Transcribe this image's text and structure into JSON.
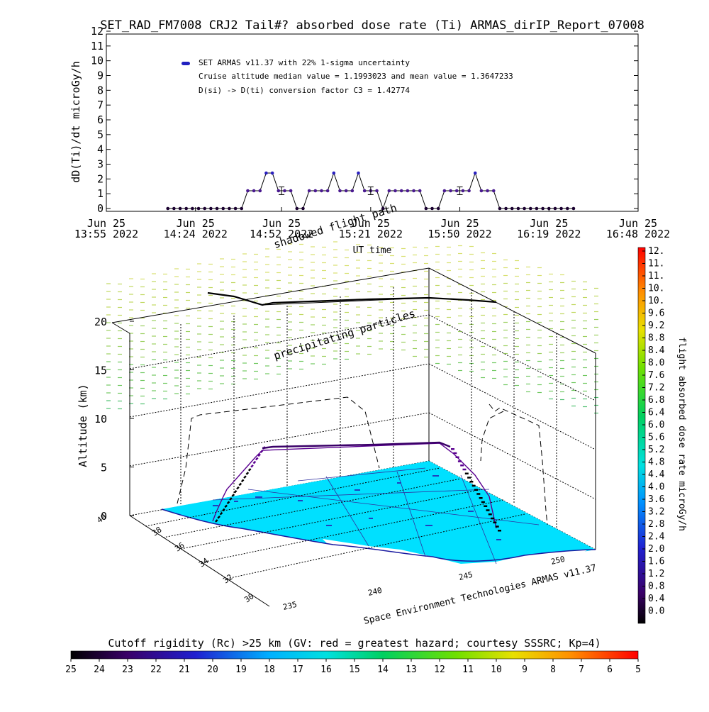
{
  "title": "SET_RAD_FM7008  CRJ2 Tail#? absorbed dose rate (Ti) ARMAS_dirIP_Report_07008",
  "chart_data": [
    {
      "type": "line",
      "ylabel": "dD(Ti)/dt microGy/h",
      "xlabel": "UT time",
      "ylim": [
        0,
        12
      ],
      "yticks": [
        0,
        1,
        2,
        3,
        4,
        5,
        6,
        7,
        8,
        9,
        10,
        11,
        12
      ],
      "xticks": [
        {
          "x": 0,
          "line1": "Jun 25",
          "line2": "13:55 2022"
        },
        {
          "x": 29,
          "line1": "Jun 25",
          "line2": "14:24 2022"
        },
        {
          "x": 57,
          "line1": "Jun 25",
          "line2": "14:52 2022"
        },
        {
          "x": 86,
          "line1": "Jun 25",
          "line2": "15:21 2022"
        },
        {
          "x": 115,
          "line1": "Jun 25",
          "line2": "15:50 2022"
        },
        {
          "x": 144,
          "line1": "Jun 25",
          "line2": "16:19 2022"
        },
        {
          "x": 173,
          "line1": "Jun 25",
          "line2": "16:48 2022"
        }
      ],
      "xlim": [
        0,
        173
      ],
      "legend": [
        "SET ARMAS v11.37 with 22% 1-sigma uncertainty",
        "Cruise altitude median value = 1.1993023 and mean value = 1.3647233",
        "D(si) -> D(ti) conversion factor C3 = 1.42774"
      ],
      "series": [
        {
          "x": [
            20,
            22,
            24,
            26,
            28,
            30,
            32,
            34,
            36,
            38,
            40,
            42,
            44,
            46,
            48,
            50,
            52,
            54,
            56,
            58,
            60,
            62,
            64,
            66,
            68,
            70,
            72,
            74,
            76,
            78,
            80,
            82,
            84,
            86,
            88,
            90,
            92,
            94,
            96,
            98,
            100,
            102,
            104,
            106,
            108,
            110,
            112,
            114,
            116,
            118,
            120,
            122,
            124,
            126,
            128,
            130,
            132,
            134,
            136,
            138,
            140,
            142,
            144,
            146,
            148,
            150,
            152
          ],
          "y": [
            0,
            0,
            0,
            0,
            0,
            0,
            0,
            0,
            0,
            0,
            0,
            0,
            0,
            1.2,
            1.2,
            1.2,
            2.4,
            2.4,
            1.2,
            1.2,
            1.2,
            0,
            0,
            1.2,
            1.2,
            1.2,
            1.2,
            2.4,
            1.2,
            1.2,
            1.2,
            2.4,
            1.2,
            1.2,
            1.2,
            0,
            1.2,
            1.2,
            1.2,
            1.2,
            1.2,
            1.2,
            0,
            0,
            0,
            1.2,
            1.2,
            1.2,
            1.2,
            1.2,
            2.4,
            1.2,
            1.2,
            1.2,
            0,
            0,
            0,
            0,
            0,
            0,
            0,
            0,
            0,
            0,
            0,
            0,
            0
          ]
        }
      ],
      "errorbars": [
        {
          "x": 57,
          "y": 1.2,
          "err": 0.26
        },
        {
          "x": 86,
          "y": 1.2,
          "err": 0.26
        },
        {
          "x": 115,
          "y": 1.2,
          "err": 0.26
        }
      ]
    },
    {
      "type": "scatter",
      "zlabel": "Altitude (km)",
      "zticks": [
        0,
        5,
        10,
        15,
        20
      ],
      "latticks": [
        "30",
        "32",
        "34",
        "36",
        "38",
        "40"
      ],
      "lonticks": [
        "235",
        "240",
        "245",
        "250"
      ],
      "annotations": [
        "shadowed flight path",
        "precipitating particles"
      ],
      "credit": "Space Environment Technologies ARMAS v11.37",
      "colorbar": {
        "label": "flight absorbed dose rate microGy/h",
        "ticks": [
          "12.",
          "11.",
          "11.",
          "10.",
          "10.",
          "9.6",
          "9.2",
          "8.8",
          "8.4",
          "8.0",
          "7.6",
          "7.2",
          "6.8",
          "6.4",
          "6.0",
          "5.6",
          "5.2",
          "4.8",
          "4.4",
          "4.0",
          "3.6",
          "3.2",
          "2.8",
          "2.4",
          "2.0",
          "1.6",
          "1.2",
          "0.8",
          "0.4",
          "0.0"
        ]
      },
      "rigidity_bar": {
        "label": "Cutoff rigidity (Rc) >25 km (GV: red = greatest hazard; courtesy SSSRC; Kp=4)",
        "ticks": [
          "25",
          "24",
          "23",
          "22",
          "21",
          "20",
          "19",
          "18",
          "17",
          "16",
          "15",
          "14",
          "13",
          "12",
          "11",
          "10",
          "9",
          "8",
          "7",
          "6",
          "5"
        ]
      }
    }
  ]
}
